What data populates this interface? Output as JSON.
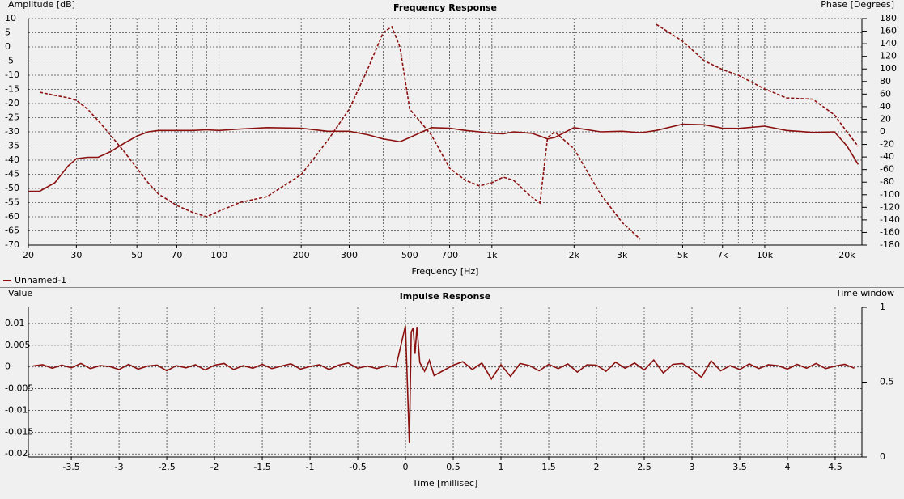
{
  "chart_data": [
    {
      "type": "line",
      "title": "Frequency Response",
      "xlabel": "Frequency [Hz]",
      "ylabel": "Amplitude [dB]",
      "y2label": "Phase [Degrees]",
      "xscale": "log",
      "xlim": [
        20,
        22700
      ],
      "ylim": [
        -70,
        10
      ],
      "y2lim": [
        -180,
        180
      ],
      "grid": true,
      "legend": "bottom-left",
      "xticks": [
        20,
        30,
        50,
        70,
        100,
        200,
        300,
        500,
        700,
        {
          "value": 1000,
          "label": "1k"
        },
        {
          "value": 2000,
          "label": "2k"
        },
        {
          "value": 3000,
          "label": "3k"
        },
        {
          "value": 5000,
          "label": "5k"
        },
        {
          "value": 7000,
          "label": "7k"
        },
        {
          "value": 10000,
          "label": "10k"
        },
        {
          "value": 20000,
          "label": "20k"
        }
      ],
      "xminor": [
        40,
        60,
        80,
        90,
        400,
        600,
        800,
        900,
        4000,
        6000,
        8000,
        9000
      ],
      "yticks": [
        10,
        5,
        0,
        -5,
        -10,
        -15,
        -20,
        -25,
        -30,
        -35,
        -40,
        -45,
        -50,
        -55,
        -60,
        -65,
        -70
      ],
      "y2ticks": [
        180,
        160,
        140,
        120,
        100,
        80,
        60,
        40,
        20,
        0,
        -20,
        -40,
        -60,
        -80,
        -100,
        -120,
        -140,
        -160,
        -180
      ],
      "x": [
        20,
        22,
        25,
        28,
        30,
        33,
        36,
        40,
        45,
        50,
        55,
        60,
        70,
        80,
        90,
        100,
        120,
        150,
        200,
        250,
        300,
        350,
        400,
        430,
        460,
        500,
        600,
        700,
        800,
        900,
        1000,
        1100,
        1200,
        1400,
        1500,
        1600,
        1700,
        2000,
        2500,
        3000,
        3500,
        3700,
        4000,
        5000,
        6000,
        7000,
        8000,
        10000,
        12000,
        15000,
        18000,
        20000,
        22000
      ],
      "series": [
        {
          "name": "Unnamed-1",
          "color": "#8b1010",
          "values": [
            -51,
            -51,
            -48,
            -42,
            -39.5,
            -39,
            -39,
            -37,
            -34,
            -31.5,
            -30,
            -29.5,
            -29.5,
            -29.5,
            -29.3,
            -29.5,
            -29,
            -28.5,
            -28.7,
            -29.8,
            -29.8,
            -31,
            -32.5,
            -33,
            -33.5,
            -32,
            -28.5,
            -28.7,
            -29.5,
            -30,
            -30.5,
            -30.7,
            -30,
            -30.5,
            -31.5,
            -32.5,
            -32,
            -28.5,
            -30,
            -29.8,
            -30.3,
            -30,
            -29.5,
            -27.3,
            -27.5,
            -28.7,
            -28.8,
            -28,
            -29.5,
            -30.2,
            -30,
            -35,
            -41.5
          ]
        },
        {
          "color": "#8b1010",
          "dash": true,
          "axis": "y2",
          "values": [
            null,
            63,
            58,
            54,
            50,
            36,
            18,
            -5,
            -32,
            -58,
            -81,
            -99,
            -117,
            -128,
            -135,
            -126,
            -112,
            -103,
            -68,
            -14,
            36,
            99,
            158,
            167,
            135,
            36,
            -5,
            -58,
            -77,
            -86,
            -81,
            -72,
            -77,
            -104,
            -113,
            -9,
            0,
            -27,
            -99,
            -144,
            -171,
            null,
            171,
            144,
            113,
            99,
            90,
            68,
            54,
            52,
            27,
            0,
            -23
          ]
        }
      ]
    },
    {
      "type": "line",
      "title": "Impulse Response",
      "xlabel": "Time [millisec]",
      "ylabel": "Value",
      "y2label": "Time window",
      "xscale": "linear",
      "xlim": [
        -3.95,
        4.78
      ],
      "ylim": [
        -0.0207,
        0.0137
      ],
      "y2lim": [
        0,
        1
      ],
      "grid": true,
      "xticks": [
        -3.5,
        -3,
        -2.5,
        -2,
        -1.5,
        -1,
        -0.5,
        0,
        0.5,
        1,
        1.5,
        2,
        2.5,
        3,
        3.5,
        4,
        4.5
      ],
      "yticks": [
        0.01,
        0.005,
        0,
        -0.005,
        -0.01,
        -0.015,
        -0.02
      ],
      "y2ticks": [
        1,
        0.5,
        0
      ],
      "x": [
        -3.9,
        -3.8,
        -3.7,
        -3.6,
        -3.5,
        -3.4,
        -3.3,
        -3.2,
        -3.1,
        -3,
        -2.9,
        -2.8,
        -2.7,
        -2.6,
        -2.5,
        -2.4,
        -2.3,
        -2.2,
        -2.1,
        -2,
        -1.9,
        -1.8,
        -1.7,
        -1.6,
        -1.5,
        -1.4,
        -1.3,
        -1.2,
        -1.1,
        -1,
        -0.9,
        -0.8,
        -0.7,
        -0.6,
        -0.5,
        -0.4,
        -0.3,
        -0.2,
        -0.1,
        0,
        0.02,
        0.04,
        0.06,
        0.08,
        0.1,
        0.12,
        0.15,
        0.2,
        0.25,
        0.3,
        0.4,
        0.5,
        0.6,
        0.7,
        0.8,
        0.9,
        1,
        1.1,
        1.2,
        1.3,
        1.4,
        1.5,
        1.6,
        1.7,
        1.8,
        1.9,
        2,
        2.1,
        2.2,
        2.3,
        2.4,
        2.5,
        2.6,
        2.7,
        2.8,
        2.9,
        3,
        3.1,
        3.2,
        3.3,
        3.4,
        3.5,
        3.6,
        3.7,
        3.8,
        3.9,
        4,
        4.1,
        4.2,
        4.3,
        4.4,
        4.5,
        4.6,
        4.7
      ],
      "series": [
        {
          "color": "#8b1010",
          "values": [
            0.0002,
            0.0005,
            -0.0003,
            0.0004,
            -0.0002,
            0.0008,
            -0.0004,
            0.0003,
            0.0001,
            -0.0006,
            0.0006,
            -0.0005,
            0.0002,
            0.0004,
            -0.0009,
            0.0003,
            -0.0002,
            0.0005,
            -0.0007,
            0.0004,
            0.0008,
            -0.0006,
            0.0003,
            -0.0003,
            0.0006,
            -0.0004,
            0.0002,
            0.0007,
            -0.0005,
            0.0001,
            0.0005,
            -0.0006,
            0.0004,
            0.0009,
            -0.0003,
            0.0002,
            -0.0004,
            0.0003,
            0,
            0.0095,
            -0.004,
            -0.0175,
            0.008,
            0.009,
            0.003,
            0.0092,
            0.001,
            -0.001,
            0.0015,
            -0.002,
            -0.0008,
            0.0004,
            0.0012,
            -0.0006,
            0.0009,
            -0.0028,
            0.0005,
            -0.0022,
            0.0008,
            0.0003,
            -0.0009,
            0.0006,
            -0.0004,
            0.0007,
            -0.0012,
            0.0005,
            0.0004,
            -0.001,
            0.0011,
            -0.0003,
            0.0009,
            -0.0007,
            0.0016,
            -0.0014,
            0.0006,
            0.0008,
            -0.0006,
            -0.0024,
            0.0014,
            -0.0009,
            0.0003,
            -0.0006,
            0.0007,
            -0.0004,
            0.0005,
            0.0003,
            -0.0005,
            0.0006,
            -0.0003,
            0.0008,
            -0.0004,
            0.0002,
            0.0006,
            -0.0003
          ]
        }
      ]
    }
  ]
}
